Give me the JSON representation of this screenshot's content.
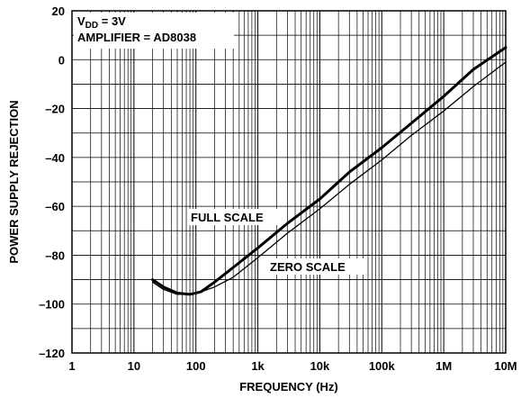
{
  "chart_data": {
    "type": "line",
    "xscale": "log",
    "xlim": [
      1,
      10000000
    ],
    "ylim": [
      -120,
      20
    ],
    "xlabel": "FREQUENCY (Hz)",
    "ylabel": "POWER SUPPLY REJECTION",
    "x_tick_labels": [
      "1",
      "10",
      "100",
      "1k",
      "10k",
      "100k",
      "1M",
      "10M"
    ],
    "x_tick_values": [
      1,
      10,
      100,
      1000,
      10000,
      100000,
      1000000,
      10000000
    ],
    "y_ticks": [
      20,
      0,
      -20,
      -40,
      -60,
      -80,
      -100,
      -120
    ],
    "y_tick_labels": [
      "20",
      "0",
      "–20",
      "–40",
      "–60",
      "–80",
      "–100",
      "–120"
    ],
    "grid": true,
    "annotations": {
      "vdd_prefix": "V",
      "vdd_sub": "DD",
      "vdd_value": " = 3V",
      "amplifier": "AMPLIFIER = AD8038",
      "full_scale": "FULL SCALE",
      "zero_scale": "ZERO SCALE"
    },
    "series": [
      {
        "name": "FULL SCALE",
        "stroke": "thick",
        "x": [
          20,
          30,
          50,
          80,
          120,
          200,
          400,
          1000,
          3000,
          10000,
          30000,
          100000,
          300000,
          1000000,
          3000000,
          10000000
        ],
        "y": [
          -90,
          -93,
          -95.5,
          -96,
          -95,
          -91,
          -85,
          -77,
          -67,
          -57,
          -46,
          -36,
          -26,
          -15,
          -4,
          5
        ]
      },
      {
        "name": "ZERO SCALE",
        "stroke": "thin",
        "x": [
          20,
          30,
          50,
          80,
          120,
          200,
          400,
          1000,
          3000,
          10000,
          30000,
          100000,
          300000,
          1000000,
          3000000,
          10000000
        ],
        "y": [
          -91,
          -94,
          -96,
          -96,
          -95,
          -93,
          -89,
          -81,
          -71,
          -61,
          -51,
          -41,
          -31,
          -21,
          -11,
          -1
        ]
      }
    ]
  }
}
